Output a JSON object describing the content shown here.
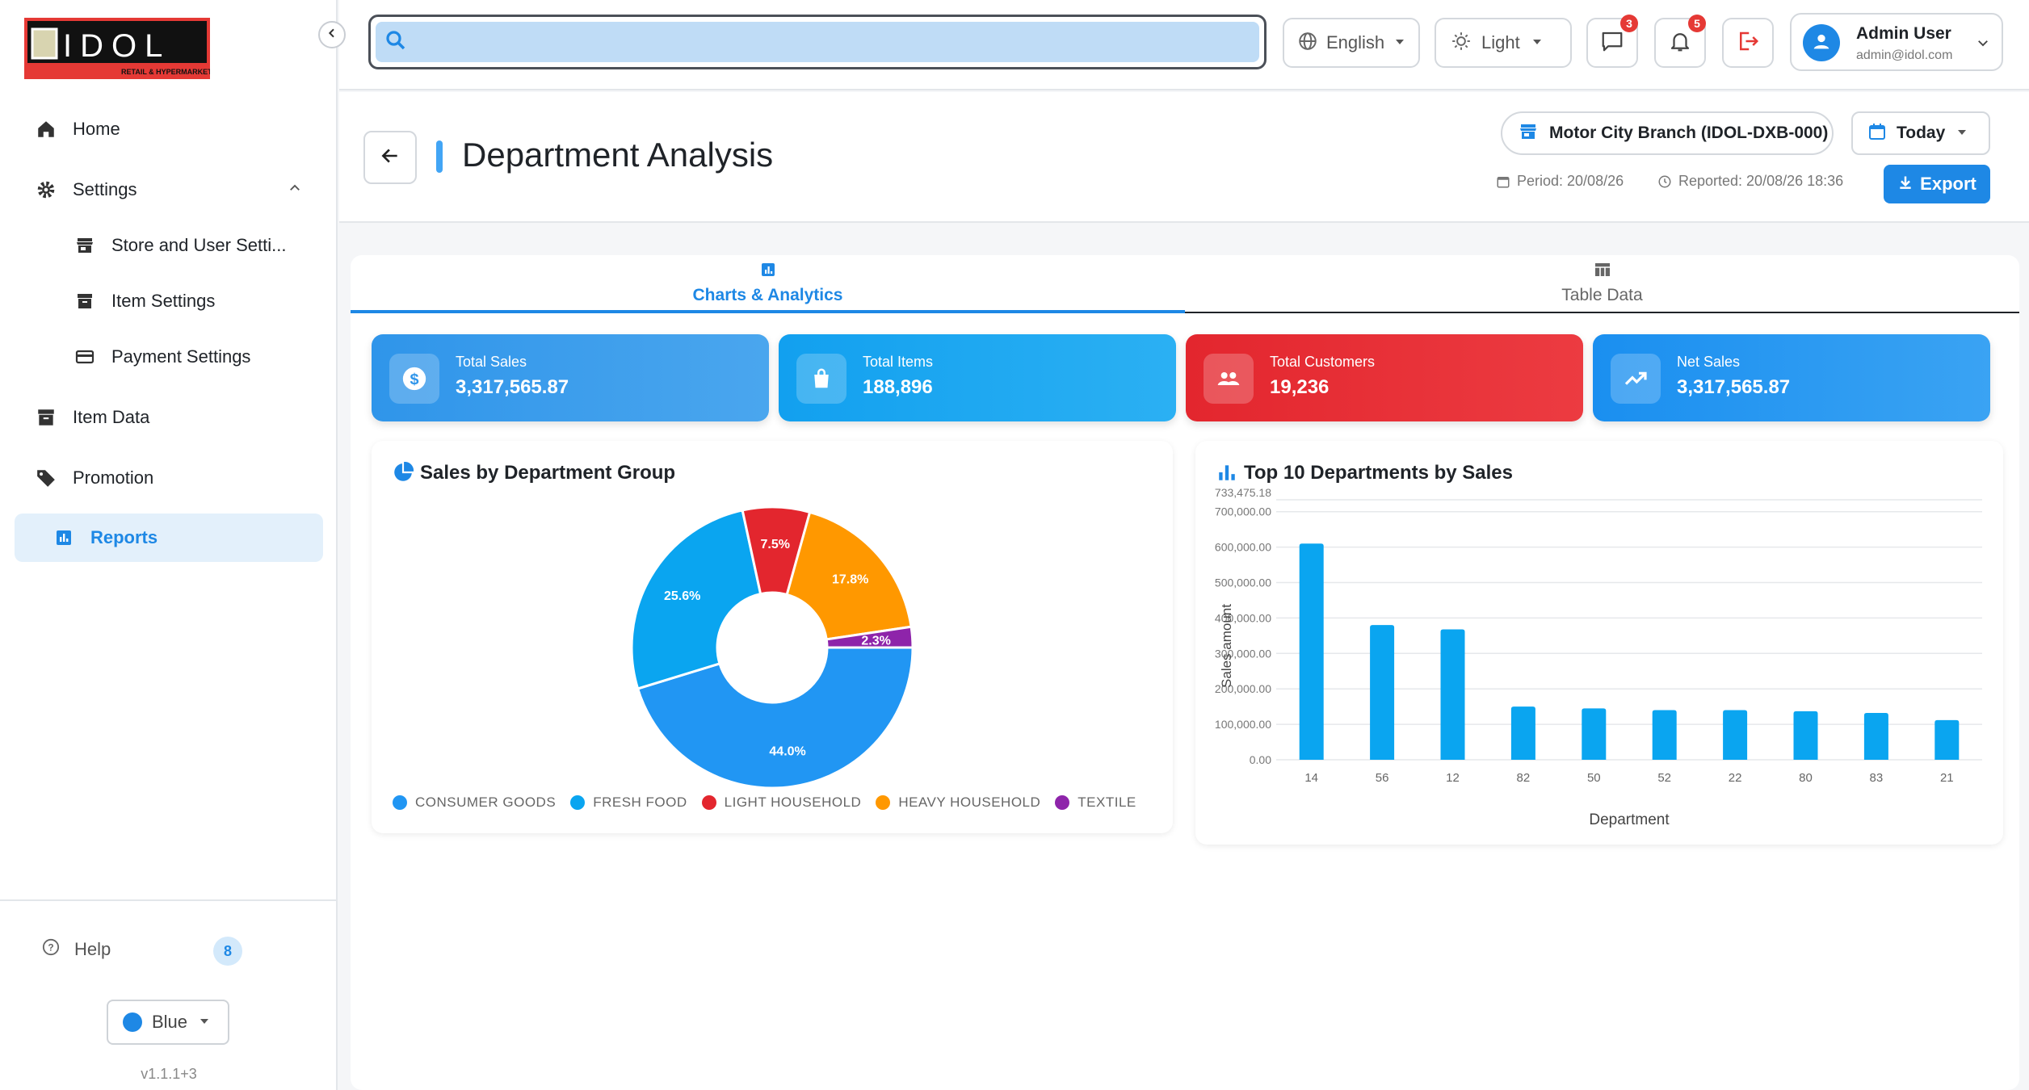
{
  "sidebar": {
    "logo_text": "IDOL",
    "logo_sub": "RETAIL & HYPERMARKET",
    "items": [
      {
        "label": "Home"
      },
      {
        "label": "Settings"
      },
      {
        "label": "Store and User Setti..."
      },
      {
        "label": "Item Settings"
      },
      {
        "label": "Payment Settings"
      },
      {
        "label": "Item Data"
      },
      {
        "label": "Promotion"
      },
      {
        "label": "Reports"
      }
    ],
    "help_label": "Help",
    "help_badge": "8",
    "theme_label": "Blue",
    "version": "v1.1.1+3"
  },
  "topbar": {
    "search_placeholder": "",
    "language": "English",
    "mode": "Light",
    "messages_count": "3",
    "notifications_count": "5",
    "user_name": "Admin User",
    "user_email": "admin@idol.com"
  },
  "header": {
    "title": "Department Analysis",
    "branch": "Motor City Branch (IDOL-DXB-000)",
    "date_range": "Today",
    "period": "Period: 20/08/26",
    "reported": "Reported: 20/08/26 18:36",
    "export_label": "Export"
  },
  "tabs": [
    {
      "label": "Charts & Analytics",
      "active": true
    },
    {
      "label": "Table Data",
      "active": false
    }
  ],
  "kpis": [
    {
      "label": "Total Sales",
      "value": "3,317,565.87",
      "color": "#2f95ea",
      "icon": "dollar-icon"
    },
    {
      "label": "Total Items",
      "value": "188,896",
      "color": "#16a4f0",
      "icon": "shopping-bag-icon"
    },
    {
      "label": "Total Customers",
      "value": "19,236",
      "color": "#e3262e",
      "icon": "people-icon"
    },
    {
      "label": "Net Sales",
      "value": "3,317,565.87",
      "color": "#1e90f0",
      "icon": "trending-up-icon"
    }
  ],
  "colors": {
    "accent": "#1e88e5",
    "consumer_goods": "#2196f3",
    "fresh_food": "#0aa5f0",
    "light_household": "#e3262e",
    "heavy_household": "#ff9800",
    "textile": "#8e24aa"
  },
  "chart_data": [
    {
      "type": "pie",
      "title": "Sales by Department Group",
      "donut": true,
      "slices": [
        {
          "name": "CONSUMER GOODS",
          "value": 44.0,
          "label": "44.0%",
          "color": "#2196f3"
        },
        {
          "name": "FRESH FOOD",
          "value": 25.6,
          "label": "25.6%",
          "color": "#0aa5f0"
        },
        {
          "name": "LIGHT HOUSEHOLD",
          "value": 7.5,
          "label": "7.5%",
          "color": "#e3262e"
        },
        {
          "name": "HEAVY HOUSEHOLD",
          "value": 17.8,
          "label": "17.8%",
          "color": "#ff9800"
        },
        {
          "name": "TEXTILE",
          "value": 2.3,
          "label": "2.3%",
          "color": "#8e24aa"
        }
      ],
      "legend_position": "bottom"
    },
    {
      "type": "bar",
      "title": "Top 10 Departments by Sales",
      "xlabel": "Department",
      "ylabel": "Sales amount",
      "categories": [
        "14",
        "56",
        "12",
        "82",
        "50",
        "52",
        "22",
        "80",
        "83",
        "21"
      ],
      "values": [
        610000,
        380000,
        368000,
        150000,
        145000,
        140000,
        140000,
        137000,
        132000,
        112000
      ],
      "ylim": [
        0,
        733475.18
      ],
      "ymax_label": "733,475.18",
      "yticks": [
        0,
        100000,
        200000,
        300000,
        400000,
        500000,
        600000,
        700000
      ],
      "ytick_labels": [
        "0.00",
        "100,000.00",
        "200,000.00",
        "300,000.00",
        "400,000.00",
        "500,000.00",
        "600,000.00",
        "700,000.00"
      ],
      "bar_color": "#0aa5f0",
      "grid": true
    }
  ]
}
